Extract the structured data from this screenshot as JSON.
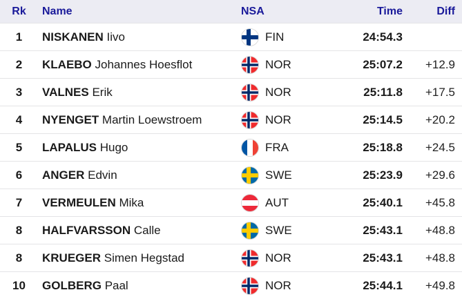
{
  "table": {
    "columns": [
      "Rk",
      "Name",
      "NSA",
      "Time",
      "Diff"
    ],
    "rows": [
      {
        "rank": "1",
        "surname": "NISKANEN",
        "firstname": "Iivo",
        "nsa": "FIN",
        "time": "24:54.3",
        "diff": ""
      },
      {
        "rank": "2",
        "surname": "KLAEBO",
        "firstname": "Johannes Hoesflot",
        "nsa": "NOR",
        "time": "25:07.2",
        "diff": "+12.9"
      },
      {
        "rank": "3",
        "surname": "VALNES",
        "firstname": "Erik",
        "nsa": "NOR",
        "time": "25:11.8",
        "diff": "+17.5"
      },
      {
        "rank": "4",
        "surname": "NYENGET",
        "firstname": "Martin Loewstroem",
        "nsa": "NOR",
        "time": "25:14.5",
        "diff": "+20.2"
      },
      {
        "rank": "5",
        "surname": "LAPALUS",
        "firstname": "Hugo",
        "nsa": "FRA",
        "time": "25:18.8",
        "diff": "+24.5"
      },
      {
        "rank": "6",
        "surname": "ANGER",
        "firstname": "Edvin",
        "nsa": "SWE",
        "time": "25:23.9",
        "diff": "+29.6"
      },
      {
        "rank": "7",
        "surname": "VERMEULEN",
        "firstname": "Mika",
        "nsa": "AUT",
        "time": "25:40.1",
        "diff": "+45.8"
      },
      {
        "rank": "8",
        "surname": "HALFVARSSON",
        "firstname": "Calle",
        "nsa": "SWE",
        "time": "25:43.1",
        "diff": "+48.8"
      },
      {
        "rank": "8",
        "surname": "KRUEGER",
        "firstname": "Simen Hegstad",
        "nsa": "NOR",
        "time": "25:43.1",
        "diff": "+48.8"
      },
      {
        "rank": "10",
        "surname": "GOLBERG",
        "firstname": "Paal",
        "nsa": "NOR",
        "time": "25:44.1",
        "diff": "+49.8"
      }
    ]
  },
  "flags": {
    "FIN": {
      "type": "nordic",
      "bg": "#ffffff",
      "cross": "#003580"
    },
    "NOR": {
      "type": "nordic2",
      "bg": "#EF2B2D",
      "outer": "#ffffff",
      "inner": "#002868"
    },
    "FRA": {
      "type": "vstripes",
      "stripes": [
        "#0055A4",
        "#ffffff",
        "#EF4135"
      ]
    },
    "SWE": {
      "type": "nordic",
      "bg": "#006AA7",
      "cross": "#FECC00"
    },
    "AUT": {
      "type": "hstripes",
      "stripes": [
        "#ED2939",
        "#ffffff",
        "#ED2939"
      ]
    }
  },
  "colors": {
    "header_text": "#1a1a9a",
    "header_bg": "#ececf3",
    "row_divider": "#e4e4e6",
    "text": "#1a1a1a"
  }
}
